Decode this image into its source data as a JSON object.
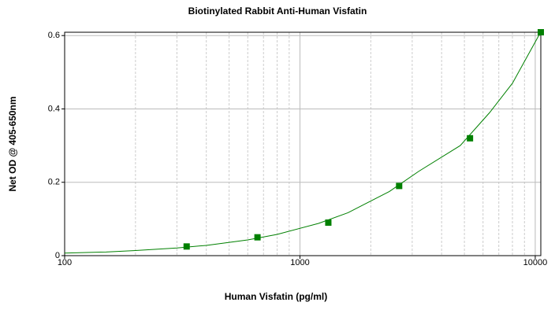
{
  "chart_data": {
    "type": "scatter",
    "title": "Biotinylated Rabbit Anti-Human Visfatin",
    "x_label": "Human Visfatin (pg/ml)",
    "y_label": "Net OD @ 405-650nm",
    "x_log": true,
    "xlim": [
      100,
      10560
    ],
    "ylim": [
      0,
      0.609
    ],
    "xticks": [
      100,
      1000,
      10000
    ],
    "x_minor_grid": [
      200,
      300,
      400,
      500,
      600,
      700,
      800,
      900,
      2000,
      3000,
      4000,
      5000,
      6000,
      7000,
      8000,
      9000
    ],
    "yticks": [
      0,
      0.2,
      0.4,
      0.6
    ],
    "grid": true,
    "series": [
      {
        "color": "#008000",
        "marker": "square",
        "x": [
          330,
          660,
          1320,
          2640,
          5280,
          10560
        ],
        "values": [
          0.025,
          0.05,
          0.09,
          0.19,
          0.32,
          0.609
        ]
      }
    ],
    "fit": {
      "color": "#008000",
      "x": [
        100,
        150,
        200,
        300,
        400,
        600,
        800,
        1200,
        1600,
        2400,
        3200,
        4800,
        6400,
        8000,
        10560
      ],
      "values": [
        0.007,
        0.01,
        0.014,
        0.021,
        0.028,
        0.043,
        0.058,
        0.088,
        0.117,
        0.175,
        0.23,
        0.3,
        0.39,
        0.47,
        0.61
      ]
    }
  }
}
